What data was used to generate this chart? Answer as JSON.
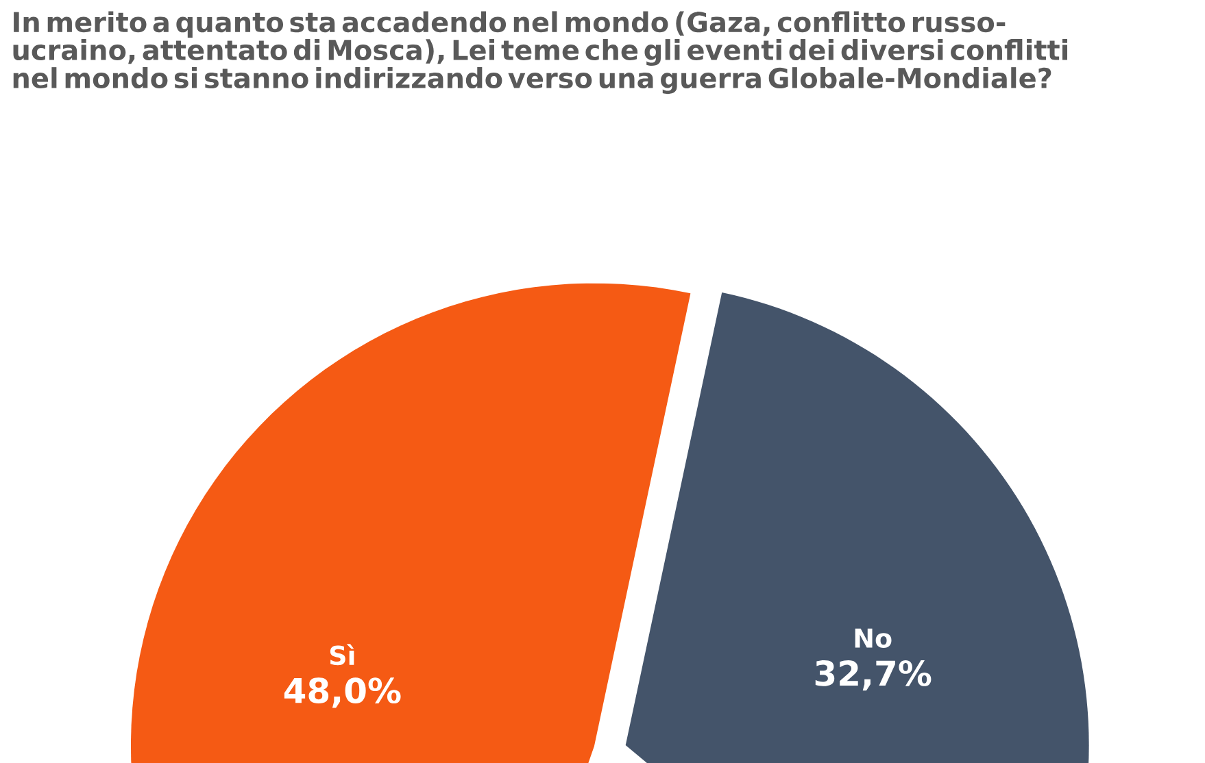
{
  "chart_data": {
    "type": "pie",
    "title": "In merito a quanto sta accadendo nel mondo (Gaza, conflitto russo-ucraino, attentato di Mosca), Lei teme che gli eventi dei diversi conflitti nel mondo si stanno indirizzando verso una guerra Globale-Mondiale?",
    "categories": [
      "Sì",
      "No"
    ],
    "values": [
      48.0,
      32.7
    ],
    "value_labels": [
      "48,0%",
      "32,7%"
    ],
    "colors": [
      "#f55a14",
      "#44546a"
    ]
  }
}
